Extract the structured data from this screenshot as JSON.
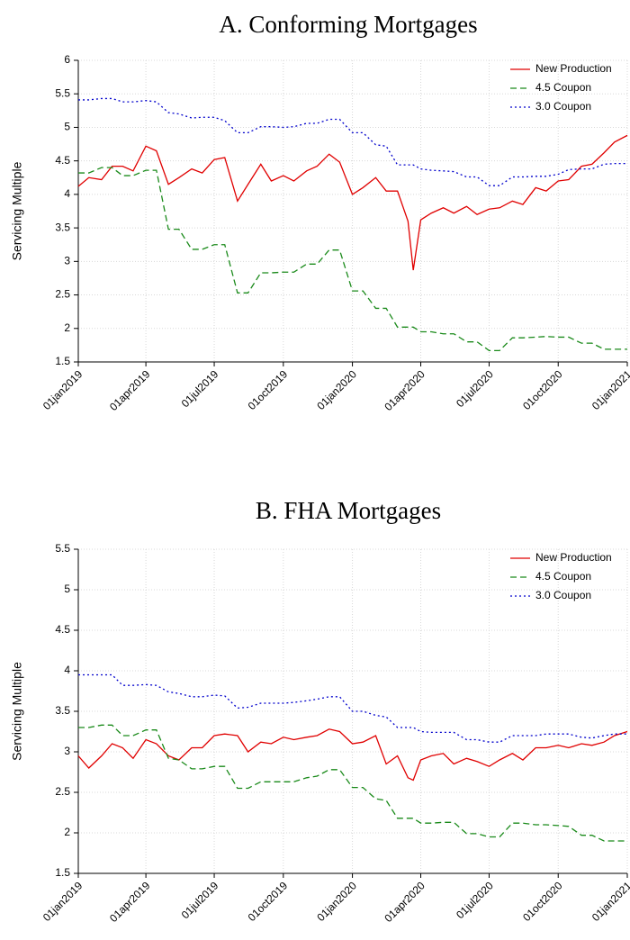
{
  "chart_data": [
    {
      "type": "line",
      "title": "A. Conforming Mortgages",
      "ylabel": "Servicing Multiple",
      "x": [
        "2019-01-01",
        "2019-01-15",
        "2019-02-01",
        "2019-02-15",
        "2019-03-01",
        "2019-03-15",
        "2019-04-01",
        "2019-04-15",
        "2019-05-01",
        "2019-05-15",
        "2019-06-01",
        "2019-06-15",
        "2019-07-01",
        "2019-07-15",
        "2019-08-01",
        "2019-08-15",
        "2019-09-01",
        "2019-09-15",
        "2019-10-01",
        "2019-10-15",
        "2019-11-01",
        "2019-11-15",
        "2019-12-01",
        "2019-12-15",
        "2020-01-01",
        "2020-01-15",
        "2020-02-01",
        "2020-02-15",
        "2020-03-01",
        "2020-03-15",
        "2020-03-22",
        "2020-04-01",
        "2020-04-15",
        "2020-05-01",
        "2020-05-15",
        "2020-06-01",
        "2020-06-15",
        "2020-07-01",
        "2020-07-15",
        "2020-08-01",
        "2020-08-15",
        "2020-09-01",
        "2020-09-15",
        "2020-10-01",
        "2020-10-15",
        "2020-11-01",
        "2020-11-15",
        "2020-12-01",
        "2020-12-15",
        "2021-01-01"
      ],
      "xlim": [
        "2019-01-01",
        "2021-01-01"
      ],
      "xticks": [
        {
          "value": "2019-01-01",
          "label": "01jan2019"
        },
        {
          "value": "2019-04-01",
          "label": "01apr2019"
        },
        {
          "value": "2019-07-01",
          "label": "01jul2019"
        },
        {
          "value": "2019-10-01",
          "label": "01oct2019"
        },
        {
          "value": "2020-01-01",
          "label": "01jan2020"
        },
        {
          "value": "2020-04-01",
          "label": "01apr2020"
        },
        {
          "value": "2020-07-01",
          "label": "01jul2020"
        },
        {
          "value": "2020-10-01",
          "label": "01oct2020"
        },
        {
          "value": "2021-01-01",
          "label": "01jan2021"
        }
      ],
      "ylim": [
        1.5,
        6
      ],
      "yticks": [
        1.5,
        2,
        2.5,
        3,
        3.5,
        4,
        4.5,
        5,
        5.5,
        6
      ],
      "grid": true,
      "legend_position": "top-right",
      "series": [
        {
          "name": "New Production",
          "color": "#e00000",
          "line_style": "solid",
          "values": [
            4.12,
            4.25,
            4.22,
            4.42,
            4.42,
            4.35,
            4.72,
            4.65,
            4.15,
            4.25,
            4.38,
            4.32,
            4.52,
            4.55,
            3.9,
            4.15,
            4.45,
            4.2,
            4.28,
            4.2,
            4.35,
            4.42,
            4.6,
            4.48,
            4.0,
            4.1,
            4.25,
            4.05,
            4.05,
            3.6,
            2.87,
            3.62,
            3.72,
            3.8,
            3.72,
            3.82,
            3.7,
            3.78,
            3.8,
            3.9,
            3.85,
            4.1,
            4.05,
            4.2,
            4.22,
            4.42,
            4.45,
            4.62,
            4.78,
            4.88
          ]
        },
        {
          "name": "4.5 Coupon",
          "color": "#1a8a1a",
          "line_style": "dashed",
          "values": [
            4.32,
            4.32,
            4.4,
            4.4,
            4.28,
            4.28,
            4.36,
            4.36,
            3.48,
            3.48,
            3.18,
            3.18,
            3.25,
            3.25,
            2.53,
            2.53,
            2.83,
            2.83,
            2.84,
            2.84,
            2.96,
            2.96,
            3.17,
            3.17,
            2.56,
            2.56,
            2.3,
            2.3,
            2.02,
            2.02,
            2.02,
            1.95,
            1.95,
            1.92,
            1.92,
            1.8,
            1.8,
            1.67,
            1.67,
            1.86,
            1.86,
            1.87,
            1.88,
            1.87,
            1.87,
            1.78,
            1.78,
            1.69,
            1.69,
            1.69
          ]
        },
        {
          "name": "3.0 Coupon",
          "color": "#0000cc",
          "line_style": "dotted",
          "values": [
            5.41,
            5.41,
            5.43,
            5.43,
            5.38,
            5.38,
            5.4,
            5.38,
            5.22,
            5.2,
            5.14,
            5.15,
            5.15,
            5.1,
            4.92,
            4.92,
            5.01,
            5.01,
            5.0,
            5.01,
            5.06,
            5.06,
            5.12,
            5.12,
            4.92,
            4.92,
            4.74,
            4.72,
            4.44,
            4.44,
            4.44,
            4.38,
            4.36,
            4.35,
            4.34,
            4.26,
            4.26,
            4.13,
            4.13,
            4.26,
            4.26,
            4.27,
            4.27,
            4.3,
            4.37,
            4.38,
            4.38,
            4.45,
            4.46,
            4.46
          ]
        }
      ]
    },
    {
      "type": "line",
      "title": "B. FHA Mortgages",
      "ylabel": "Servicing Multiple",
      "x": [
        "2019-01-01",
        "2019-01-15",
        "2019-02-01",
        "2019-02-15",
        "2019-03-01",
        "2019-03-15",
        "2019-04-01",
        "2019-04-15",
        "2019-05-01",
        "2019-05-15",
        "2019-06-01",
        "2019-06-15",
        "2019-07-01",
        "2019-07-15",
        "2019-08-01",
        "2019-08-15",
        "2019-09-01",
        "2019-09-15",
        "2019-10-01",
        "2019-10-15",
        "2019-11-01",
        "2019-11-15",
        "2019-12-01",
        "2019-12-15",
        "2020-01-01",
        "2020-01-15",
        "2020-02-01",
        "2020-02-15",
        "2020-03-01",
        "2020-03-15",
        "2020-03-22",
        "2020-04-01",
        "2020-04-15",
        "2020-05-01",
        "2020-05-15",
        "2020-06-01",
        "2020-06-15",
        "2020-07-01",
        "2020-07-15",
        "2020-08-01",
        "2020-08-15",
        "2020-09-01",
        "2020-09-15",
        "2020-10-01",
        "2020-10-15",
        "2020-11-01",
        "2020-11-15",
        "2020-12-01",
        "2020-12-15",
        "2021-01-01"
      ],
      "xlim": [
        "2019-01-01",
        "2021-01-01"
      ],
      "xticks": [
        {
          "value": "2019-01-01",
          "label": "01jan2019"
        },
        {
          "value": "2019-04-01",
          "label": "01apr2019"
        },
        {
          "value": "2019-07-01",
          "label": "01jul2019"
        },
        {
          "value": "2019-10-01",
          "label": "01oct2019"
        },
        {
          "value": "2020-01-01",
          "label": "01jan2020"
        },
        {
          "value": "2020-04-01",
          "label": "01apr2020"
        },
        {
          "value": "2020-07-01",
          "label": "01jul2020"
        },
        {
          "value": "2020-10-01",
          "label": "01oct2020"
        },
        {
          "value": "2021-01-01",
          "label": "01jan2021"
        }
      ],
      "ylim": [
        1.5,
        5.5
      ],
      "yticks": [
        1.5,
        2,
        2.5,
        3,
        3.5,
        4,
        4.5,
        5,
        5.5
      ],
      "grid": true,
      "legend_position": "top-right",
      "series": [
        {
          "name": "New Production",
          "color": "#e00000",
          "line_style": "solid",
          "values": [
            2.95,
            2.8,
            2.95,
            3.1,
            3.05,
            2.92,
            3.15,
            3.1,
            2.95,
            2.9,
            3.05,
            3.05,
            3.2,
            3.22,
            3.2,
            3.0,
            3.12,
            3.1,
            3.18,
            3.15,
            3.18,
            3.2,
            3.28,
            3.25,
            3.1,
            3.12,
            3.2,
            2.85,
            2.95,
            2.68,
            2.65,
            2.9,
            2.95,
            2.98,
            2.85,
            2.92,
            2.88,
            2.82,
            2.9,
            2.98,
            2.9,
            3.05,
            3.05,
            3.08,
            3.05,
            3.1,
            3.08,
            3.12,
            3.2,
            3.25
          ]
        },
        {
          "name": "4.5 Coupon",
          "color": "#1a8a1a",
          "line_style": "dashed",
          "values": [
            3.3,
            3.3,
            3.33,
            3.33,
            3.2,
            3.2,
            3.27,
            3.27,
            2.92,
            2.9,
            2.79,
            2.79,
            2.82,
            2.82,
            2.55,
            2.55,
            2.63,
            2.63,
            2.63,
            2.63,
            2.68,
            2.7,
            2.78,
            2.78,
            2.56,
            2.56,
            2.42,
            2.4,
            2.18,
            2.18,
            2.18,
            2.12,
            2.12,
            2.13,
            2.13,
            1.99,
            1.99,
            1.95,
            1.95,
            2.12,
            2.12,
            2.1,
            2.1,
            2.09,
            2.08,
            1.97,
            1.97,
            1.9,
            1.9,
            1.9
          ]
        },
        {
          "name": "3.0 Coupon",
          "color": "#0000cc",
          "line_style": "dotted",
          "values": [
            3.95,
            3.95,
            3.95,
            3.95,
            3.82,
            3.82,
            3.83,
            3.82,
            3.74,
            3.72,
            3.68,
            3.68,
            3.7,
            3.69,
            3.54,
            3.55,
            3.6,
            3.6,
            3.6,
            3.61,
            3.63,
            3.65,
            3.68,
            3.68,
            3.5,
            3.5,
            3.45,
            3.43,
            3.3,
            3.3,
            3.3,
            3.25,
            3.24,
            3.24,
            3.24,
            3.15,
            3.15,
            3.12,
            3.12,
            3.2,
            3.2,
            3.2,
            3.22,
            3.22,
            3.22,
            3.18,
            3.17,
            3.2,
            3.22,
            3.22
          ]
        }
      ]
    }
  ]
}
